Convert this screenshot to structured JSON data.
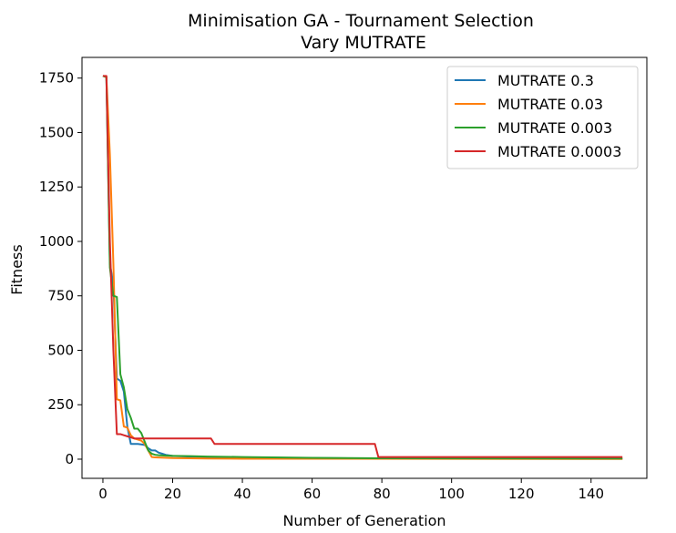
{
  "chart_data": {
    "type": "line",
    "title": "Minimisation GA - Tournament Selection",
    "subtitle": "Vary MUTRATE",
    "xlabel": "Number of Generation",
    "ylabel": "Fitness",
    "xlim": [
      -6,
      156
    ],
    "ylim": [
      -88,
      1845
    ],
    "xticks": [
      "0",
      "20",
      "40",
      "60",
      "80",
      "100",
      "120",
      "140"
    ],
    "yticks": [
      "0",
      "250",
      "500",
      "750",
      "1000",
      "1250",
      "1500",
      "1750"
    ],
    "xtick_values": [
      0,
      20,
      40,
      60,
      80,
      100,
      120,
      140
    ],
    "ytick_values": [
      0,
      250,
      500,
      750,
      1000,
      1250,
      1500,
      1750
    ],
    "legend_position": "top-right",
    "grid": false,
    "series": [
      {
        "name": "MUTRATE 0.3",
        "color": "#1f77b4",
        "points": [
          [
            0,
            1760
          ],
          [
            1,
            1755
          ],
          [
            2,
            900
          ],
          [
            3,
            800
          ],
          [
            4,
            370
          ],
          [
            5,
            360
          ],
          [
            6,
            310
          ],
          [
            7,
            150
          ],
          [
            8,
            70
          ],
          [
            9,
            70
          ],
          [
            10,
            70
          ],
          [
            11,
            68
          ],
          [
            12,
            65
          ],
          [
            13,
            50
          ],
          [
            14,
            40
          ],
          [
            15,
            40
          ],
          [
            16,
            30
          ],
          [
            17,
            25
          ],
          [
            18,
            20
          ],
          [
            20,
            15
          ],
          [
            25,
            12
          ],
          [
            30,
            10
          ],
          [
            40,
            8
          ],
          [
            60,
            5
          ],
          [
            80,
            3
          ],
          [
            149,
            2
          ]
        ]
      },
      {
        "name": "MUTRATE 0.03",
        "color": "#ff7f0e",
        "points": [
          [
            0,
            1760
          ],
          [
            1,
            1755
          ],
          [
            2,
            1400
          ],
          [
            3,
            900
          ],
          [
            4,
            275
          ],
          [
            5,
            270
          ],
          [
            6,
            150
          ],
          [
            7,
            145
          ],
          [
            8,
            110
          ],
          [
            9,
            95
          ],
          [
            10,
            90
          ],
          [
            11,
            85
          ],
          [
            12,
            70
          ],
          [
            13,
            40
          ],
          [
            14,
            10
          ],
          [
            15,
            8
          ],
          [
            20,
            5
          ],
          [
            30,
            3
          ],
          [
            40,
            2
          ],
          [
            149,
            1
          ]
        ]
      },
      {
        "name": "MUTRATE 0.003",
        "color": "#2ca02c",
        "points": [
          [
            0,
            1760
          ],
          [
            1,
            1755
          ],
          [
            2,
            880
          ],
          [
            3,
            750
          ],
          [
            4,
            745
          ],
          [
            5,
            390
          ],
          [
            6,
            330
          ],
          [
            7,
            230
          ],
          [
            8,
            190
          ],
          [
            9,
            140
          ],
          [
            10,
            140
          ],
          [
            11,
            120
          ],
          [
            12,
            80
          ],
          [
            13,
            40
          ],
          [
            14,
            25
          ],
          [
            15,
            20
          ],
          [
            16,
            18
          ],
          [
            18,
            16
          ],
          [
            20,
            15
          ],
          [
            25,
            14
          ],
          [
            30,
            12
          ],
          [
            40,
            10
          ],
          [
            60,
            6
          ],
          [
            80,
            4
          ],
          [
            149,
            3
          ]
        ]
      },
      {
        "name": "MUTRATE 0.0003",
        "color": "#d62728",
        "points": [
          [
            0,
            1760
          ],
          [
            1,
            1760
          ],
          [
            2,
            1000
          ],
          [
            3,
            500
          ],
          [
            4,
            115
          ],
          [
            5,
            115
          ],
          [
            6,
            110
          ],
          [
            7,
            105
          ],
          [
            8,
            100
          ],
          [
            9,
            95
          ],
          [
            10,
            95
          ],
          [
            31,
            95
          ],
          [
            32,
            70
          ],
          [
            78,
            70
          ],
          [
            79,
            10
          ],
          [
            149,
            10
          ]
        ]
      }
    ]
  }
}
